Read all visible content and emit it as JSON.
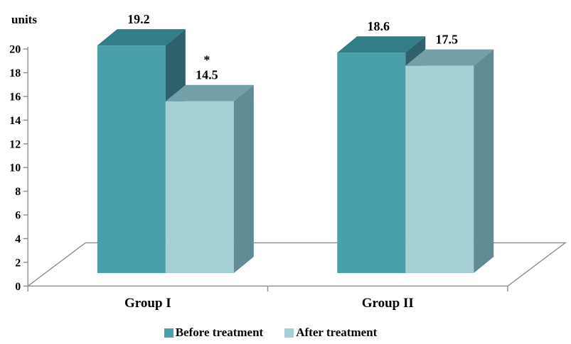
{
  "chart_data": {
    "type": "bar",
    "style": "3d-column",
    "ylabel": "units",
    "categories": [
      "Group I",
      "Group II"
    ],
    "series": [
      {
        "name": "Before treatment",
        "values": [
          19.2,
          18.6
        ],
        "color_front": "#4AA0AA",
        "color_top": "#337D88",
        "color_side": "#2E616C"
      },
      {
        "name": "After treatment",
        "values": [
          14.5,
          17.5
        ],
        "color_front": "#A5D0D6",
        "color_top": "#74A0A9",
        "color_side": "#618B95"
      }
    ],
    "value_labels": [
      [
        "19.2",
        "18.6"
      ],
      [
        "14.5",
        "17.5"
      ]
    ],
    "annotations": [
      {
        "series_index": 1,
        "category_index": 0,
        "text": "*"
      }
    ],
    "ylim": [
      0,
      20
    ],
    "ytick_step": 2,
    "ytick_labels": [
      "0",
      "2",
      "4",
      "6",
      "8",
      "10",
      "12",
      "14",
      "16",
      "18",
      "20"
    ],
    "grid": false,
    "legend_position": "bottom",
    "axis_color": "#8E8E8E",
    "text_color": "#000000",
    "background_color": "#FFFFFF"
  }
}
